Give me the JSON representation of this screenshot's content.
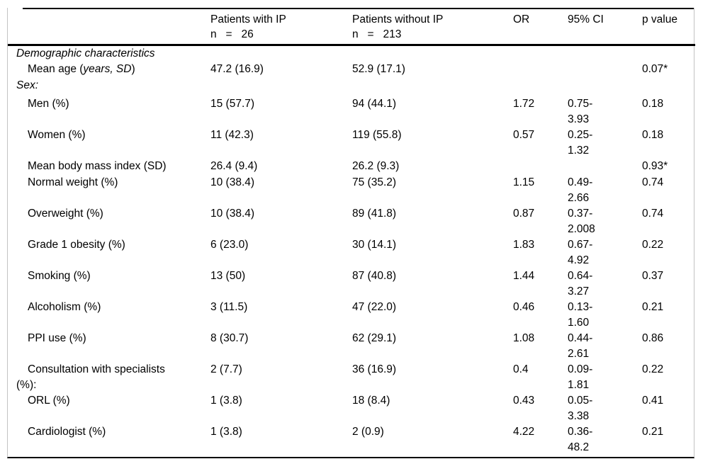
{
  "colors": {
    "background": "#ffffff",
    "text": "#000000",
    "rule_dark": "#000000",
    "rule_light": "#c3c3c3"
  },
  "table": {
    "columns": [
      {
        "label": ""
      },
      {
        "label": "Patients with IP\nn   =   26"
      },
      {
        "label": "Patients without IP\nn   =   213"
      },
      {
        "label": "OR"
      },
      {
        "label": "95% CI"
      },
      {
        "label": "p value"
      }
    ],
    "rows": [
      {
        "type": "section",
        "h": "s1",
        "label": "Demographic characteristics",
        "c_with": "",
        "c_without": "",
        "or": "",
        "ci": "",
        "p": ""
      },
      {
        "type": "item",
        "h": "s1",
        "label_parts": {
          "pre": "Mean age (",
          "italic": "years, SD",
          "post": ")"
        },
        "c_with": "47.2 (16.9)",
        "c_without": "52.9 (17.1)",
        "or": "",
        "ci": "",
        "p": "0.07*"
      },
      {
        "type": "section",
        "h": "s2",
        "label": "Sex:",
        "c_with": "",
        "c_without": "",
        "or": "",
        "ci": "",
        "p": ""
      },
      {
        "type": "item",
        "h": "d",
        "label": "Men (%)",
        "c_with": "15 (57.7)",
        "c_without": "94 (44.1)",
        "or": "1.72",
        "ci": "0.75-\n3.93",
        "p": "0.18"
      },
      {
        "type": "item",
        "h": "d",
        "label": "Women (%)",
        "c_with": "11 (42.3)",
        "c_without": "119 (55.8)",
        "or": "0.57",
        "ci": "0.25-\n1.32",
        "p": "0.18"
      },
      {
        "type": "item",
        "h": "s1",
        "label": "Mean body mass index (SD)",
        "c_with": "26.4 (9.4)",
        "c_without": "26.2 (9.3)",
        "or": "",
        "ci": "",
        "p": "0.93*"
      },
      {
        "type": "item",
        "h": "d",
        "label": "Normal weight (%)",
        "c_with": "10 (38.4)",
        "c_without": "75 (35.2)",
        "or": "1.15",
        "ci": "0.49-\n2.66",
        "p": "0.74"
      },
      {
        "type": "item",
        "h": "d",
        "label": "Overweight (%)",
        "c_with": "10 (38.4)",
        "c_without": "89 (41.8)",
        "or": "0.87",
        "ci": "0.37-\n2.008",
        "p": "0.74"
      },
      {
        "type": "item",
        "h": "d",
        "label": "Grade 1 obesity (%)",
        "c_with": "6 (23.0)",
        "c_without": "30 (14.1)",
        "or": "1.83",
        "ci": "0.67-\n4.92",
        "p": "0.22"
      },
      {
        "type": "item",
        "h": "d",
        "label": "Smoking (%)",
        "c_with": "13 (50)",
        "c_without": "87 (40.8)",
        "or": "1.44",
        "ci": "0.64-\n3.27",
        "p": "0.37"
      },
      {
        "type": "item",
        "h": "d",
        "label": "Alcoholism (%)",
        "c_with": "3 (11.5)",
        "c_without": "47 (22.0)",
        "or": "0.46",
        "ci": "0.13-\n1.60",
        "p": "0.21"
      },
      {
        "type": "item",
        "h": "d",
        "label": "PPI use (%)",
        "c_with": "8 (30.7)",
        "c_without": "62 (29.1)",
        "or": "1.08",
        "ci": "0.44-\n2.61",
        "p": "0.86"
      },
      {
        "type": "item",
        "h": "d",
        "label": "Consultation with specialists\n(%):",
        "c_with": "2 (7.7)",
        "c_without": "36 (16.9)",
        "or": "0.4",
        "ci": "0.09-\n1.81",
        "p": "0.22"
      },
      {
        "type": "item",
        "h": "d",
        "label": "ORL (%)",
        "c_with": "1 (3.8)",
        "c_without": "18 (8.4)",
        "or": "0.43",
        "ci": "0.05-\n3.38",
        "p": "0.41"
      },
      {
        "type": "item",
        "h": "last",
        "label": "Cardiologist (%)",
        "c_with": "1 (3.8)",
        "c_without": "2 (0.9)",
        "or": "4.22",
        "ci": "0.36-\n48.2",
        "p": "0.21"
      }
    ]
  }
}
